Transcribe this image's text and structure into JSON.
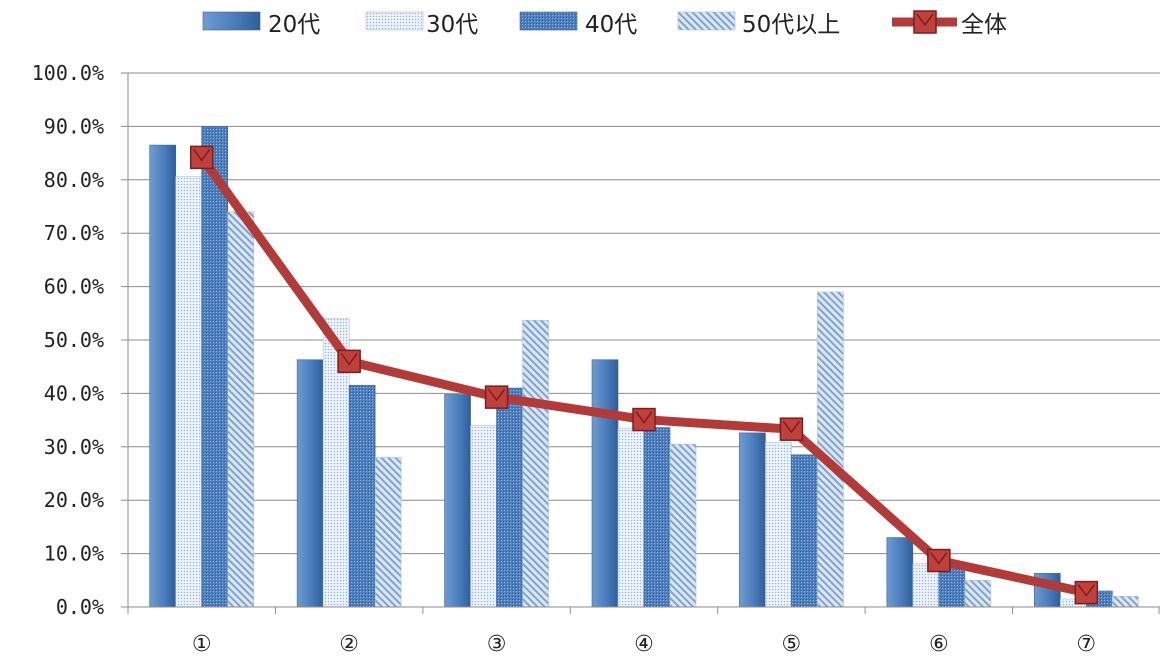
{
  "chart_data": {
    "type": "bar",
    "categories": [
      "①",
      "②",
      "③",
      "④",
      "⑤",
      "⑥",
      "⑦"
    ],
    "series": [
      {
        "name": "20代",
        "type": "bar",
        "values": [
          86.5,
          46.3,
          39.8,
          46.3,
          32.6,
          13.0,
          6.3
        ],
        "color": "#4f81bd",
        "pattern": "solid"
      },
      {
        "name": "30代",
        "type": "bar",
        "values": [
          80.6,
          54.0,
          34.0,
          33.5,
          30.8,
          8.1,
          1.5
        ],
        "color": "#c6d9ef",
        "pattern": "dots"
      },
      {
        "name": "40代",
        "type": "bar",
        "values": [
          90.0,
          41.5,
          41.0,
          33.6,
          28.5,
          8.0,
          3.0
        ],
        "color": "#4f81bd",
        "pattern": "dense"
      },
      {
        "name": "50代以上",
        "type": "bar",
        "values": [
          74.0,
          28.0,
          53.7,
          30.5,
          59.0,
          5.0,
          2.0
        ],
        "color": "#c6d9ef",
        "pattern": "diagonal"
      },
      {
        "name": "全体",
        "type": "line",
        "values": [
          84.2,
          46.0,
          39.3,
          35.1,
          33.3,
          8.7,
          2.7
        ],
        "color": "#b23a37",
        "marker": "square"
      }
    ],
    "yticks": [
      "0.0%",
      "10.0%",
      "20.0%",
      "30.0%",
      "40.0%",
      "50.0%",
      "60.0%",
      "70.0%",
      "80.0%",
      "90.0%",
      "100.0%"
    ],
    "ylim": [
      0,
      100
    ],
    "grid": true,
    "legend_position": "top"
  }
}
